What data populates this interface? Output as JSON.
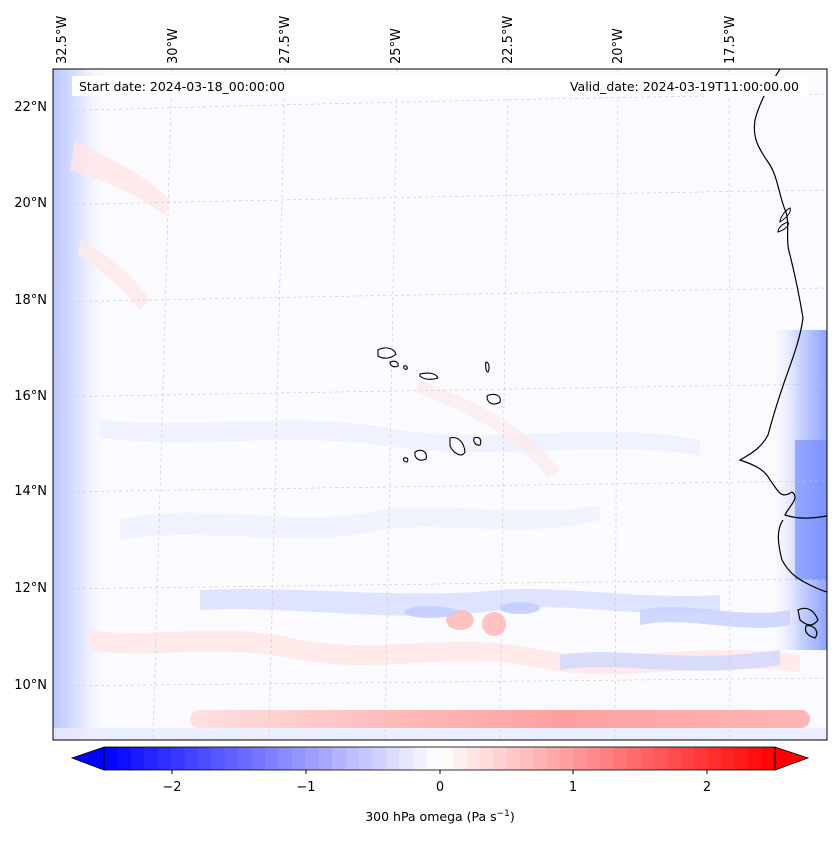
{
  "map": {
    "start_date": "Start date: 2024-03-18_00:00:00",
    "valid_date": "Valid_date: 2024-03-19T11:00:00.00",
    "lon_labels": [
      "32.5°W",
      "30°W",
      "27.5°W",
      "25°W",
      "22.5°W",
      "20°W",
      "17.5°W"
    ],
    "lat_labels": [
      "22°N",
      "20°N",
      "18°N",
      "16°N",
      "14°N",
      "12°N",
      "10°N"
    ]
  },
  "colorbar": {
    "ticks": [
      "−2",
      "−1",
      "0",
      "1",
      "2"
    ],
    "label": "300 hPa omega (Pa s",
    "label_sup": "−1",
    "label_close": ")",
    "min_color": "#0000ff",
    "mid_color": "#ffffff",
    "max_color": "#ff0000"
  }
}
